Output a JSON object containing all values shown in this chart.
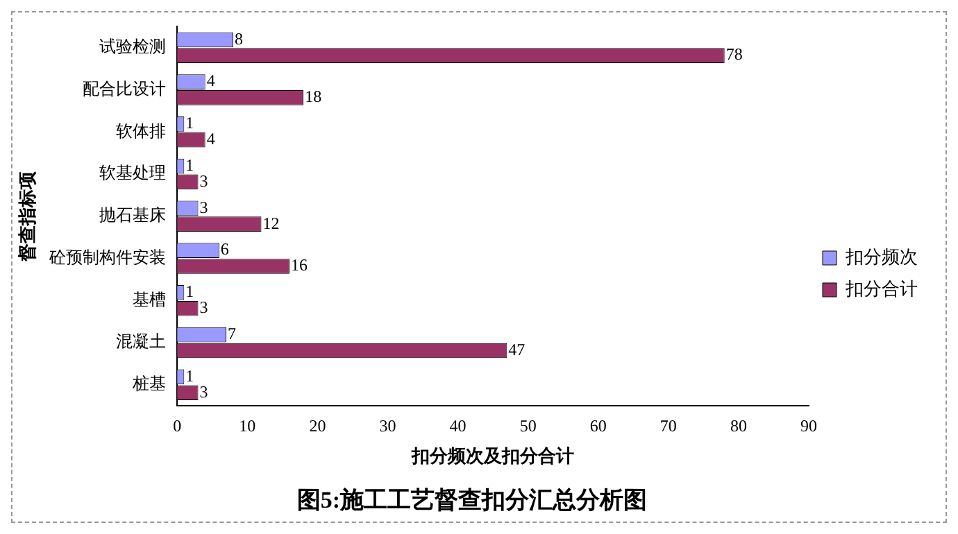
{
  "chart_data": {
    "type": "bar",
    "orientation": "horizontal",
    "title": "图5:施工工艺督查扣分汇总分析图",
    "xlabel": "扣分频次及扣分合计",
    "ylabel": "督查指标项",
    "categories": [
      "试验检测",
      "配合比设计",
      "软体排",
      "软基处理",
      "抛石基床",
      "砼预制构件安装",
      "基槽",
      "混凝土",
      "桩基"
    ],
    "series": [
      {
        "name": "扣分频次",
        "color": "#9999ff",
        "values": [
          8,
          4,
          1,
          1,
          3,
          6,
          1,
          7,
          1
        ]
      },
      {
        "name": "扣分合计",
        "color": "#993366",
        "values": [
          78,
          18,
          4,
          3,
          12,
          16,
          3,
          47,
          3
        ]
      }
    ],
    "xlim": [
      0,
      90
    ],
    "xticks": [
      0,
      10,
      20,
      30,
      40,
      50,
      60,
      70,
      80,
      90
    ],
    "grid": false,
    "legend": "right",
    "data_labels": true
  }
}
